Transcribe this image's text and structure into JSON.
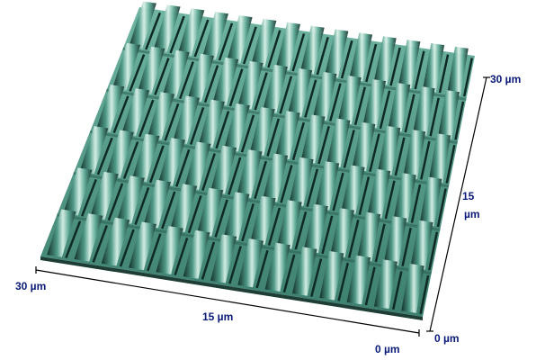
{
  "axes": {
    "front": {
      "start_label": "30 µm",
      "mid_label": "15 µm",
      "end_label": "0 µm"
    },
    "side": {
      "start_label": "0 µm",
      "mid_label_line1": "15",
      "mid_label_line2": "µm",
      "end_label": "30 µm"
    }
  },
  "surface": {
    "base_color": "#4f9a88",
    "highlight_color": "#d9f1e8",
    "shadow_color": "#0f2a24",
    "ridge_columns": 14,
    "ridge_rows": 6
  },
  "colors": {
    "axis_line": "#000000",
    "axis_text": "#0a1a78"
  }
}
